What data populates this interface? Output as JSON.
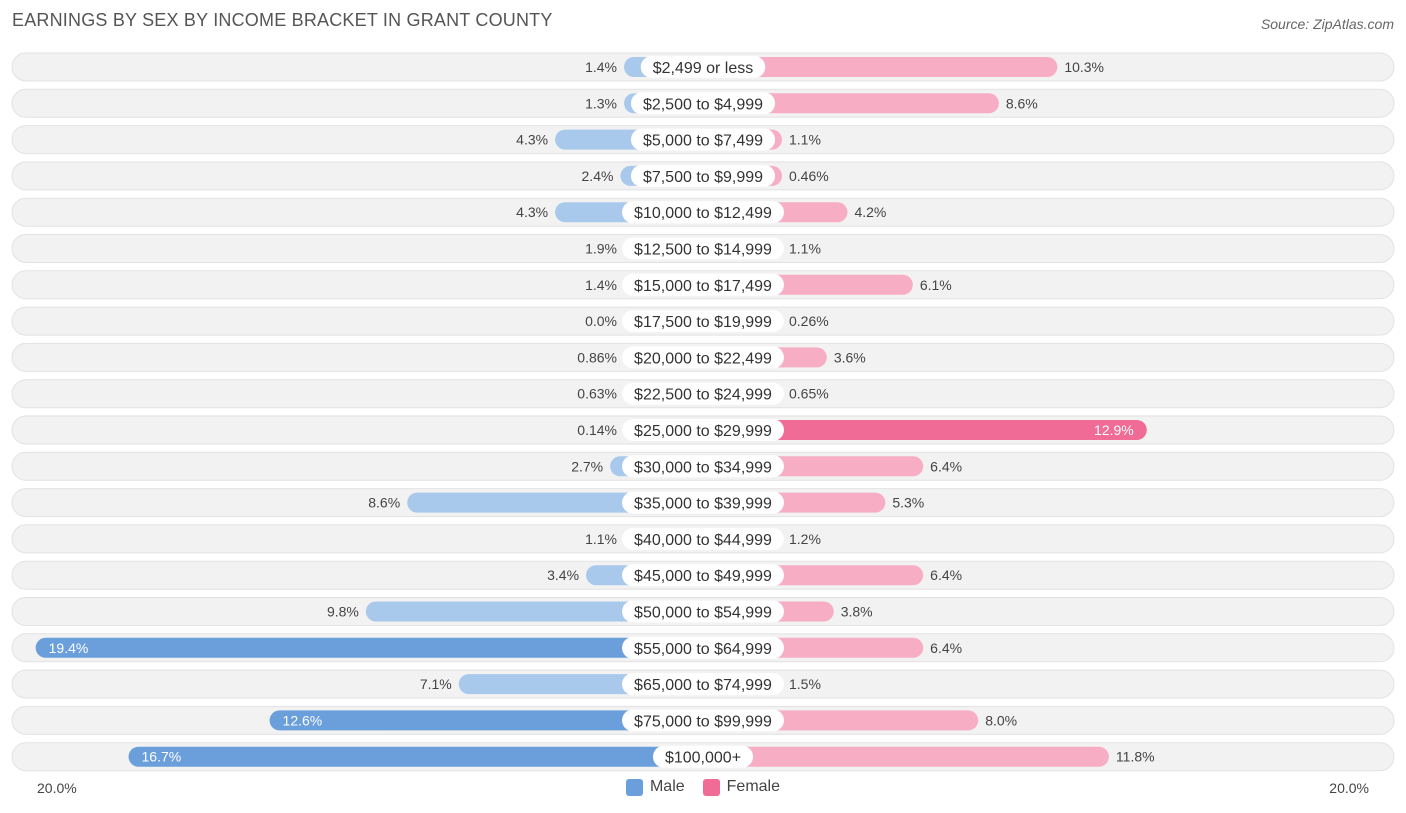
{
  "chart_data": {
    "type": "bar",
    "orientation": "horizontal-diverging",
    "title": "EARNINGS BY SEX BY INCOME BRACKET IN GRANT COUNTY",
    "source": "Source: ZipAtlas.com",
    "categories": [
      "$2,499 or less",
      "$2,500 to $4,999",
      "$5,000 to $7,499",
      "$7,500 to $9,999",
      "$10,000 to $12,499",
      "$12,500 to $14,999",
      "$15,000 to $17,499",
      "$17,500 to $19,999",
      "$20,000 to $22,499",
      "$22,500 to $24,999",
      "$25,000 to $29,999",
      "$30,000 to $34,999",
      "$35,000 to $39,999",
      "$40,000 to $44,999",
      "$45,000 to $49,999",
      "$50,000 to $54,999",
      "$55,000 to $64,999",
      "$65,000 to $74,999",
      "$75,000 to $99,999",
      "$100,000+"
    ],
    "series": [
      {
        "name": "Male",
        "color": "#6a9fdb",
        "light_color": "#a9c9ec",
        "values": [
          1.4,
          1.3,
          4.3,
          2.4,
          4.3,
          1.9,
          1.4,
          0.0,
          0.86,
          0.63,
          0.14,
          2.7,
          8.6,
          1.1,
          3.4,
          9.8,
          19.4,
          7.1,
          12.6,
          16.7
        ],
        "labels": [
          "1.4%",
          "1.3%",
          "4.3%",
          "2.4%",
          "4.3%",
          "1.9%",
          "1.4%",
          "0.0%",
          "0.86%",
          "0.63%",
          "0.14%",
          "2.7%",
          "8.6%",
          "1.1%",
          "3.4%",
          "9.8%",
          "19.4%",
          "7.1%",
          "12.6%",
          "16.7%"
        ]
      },
      {
        "name": "Female",
        "color": "#f06b96",
        "light_color": "#f7aec5",
        "values": [
          10.3,
          8.6,
          1.1,
          0.46,
          4.2,
          1.1,
          6.1,
          0.26,
          3.6,
          0.65,
          12.9,
          6.4,
          5.3,
          1.2,
          6.4,
          3.8,
          6.4,
          1.5,
          8.0,
          11.8
        ],
        "labels": [
          "10.3%",
          "8.6%",
          "1.1%",
          "0.46%",
          "4.2%",
          "1.1%",
          "6.1%",
          "0.26%",
          "3.6%",
          "0.65%",
          "12.9%",
          "6.4%",
          "5.3%",
          "1.2%",
          "6.4%",
          "3.8%",
          "6.4%",
          "1.5%",
          "8.0%",
          "11.8%"
        ]
      }
    ],
    "xlim": [
      -20,
      20
    ],
    "axis_left_label": "20.0%",
    "axis_right_label": "20.0%",
    "legend_position": "bottom-center"
  }
}
